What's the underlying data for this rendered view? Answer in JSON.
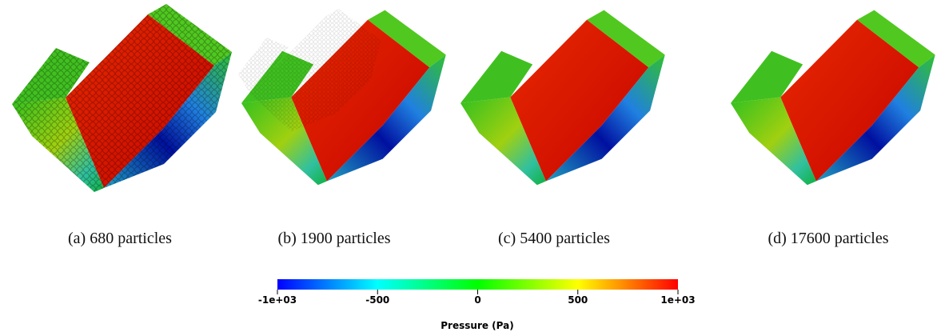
{
  "figure": {
    "panels": [
      {
        "caption": "(a) 680 particles"
      },
      {
        "caption": "(b) 1900 particles"
      },
      {
        "caption": "(c) 5400 particles"
      },
      {
        "caption": "(d) 17600 particles"
      }
    ],
    "colorbar": {
      "label": "Pressure (Pa)",
      "lim": [
        -1000,
        1000
      ],
      "ticks": [
        {
          "value": -1000,
          "label": "-1e+03"
        },
        -500,
        0,
        500,
        {
          "value": 1000,
          "label": "1e+03"
        }
      ],
      "colors": [
        "#0000ff",
        "#00ffff",
        "#00ff00",
        "#ffff00",
        "#ff0000"
      ]
    }
  }
}
